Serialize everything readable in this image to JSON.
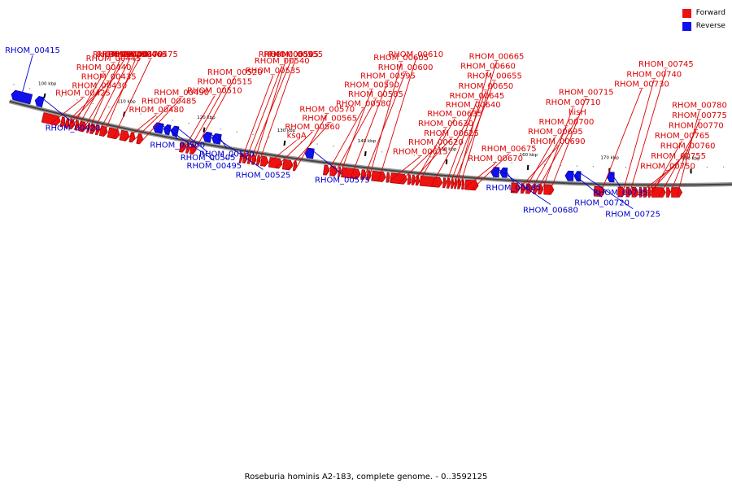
{
  "legend": {
    "forward": {
      "label": "Forward",
      "color": "#ee1111"
    },
    "reverse": {
      "label": "Reverse",
      "color": "#1111ee"
    }
  },
  "caption": "Roseburia hominis A2-183, complete genome. - 0..3592125",
  "chart_data": {
    "type": "genome-map",
    "title": "Roseburia hominis A2-183, complete genome. - 0..3592125",
    "axis_range_kbp": [
      96,
      186
    ],
    "ticks_kbp": [
      100,
      110,
      120,
      130,
      140,
      150,
      160,
      170,
      180
    ],
    "tick_labels": [
      "100 kbp",
      "110 kbp",
      "120 kbp",
      "130 kbp",
      "140 kbp",
      "150 kbp",
      "160 kbp",
      "170 kbp",
      "180 kbp"
    ],
    "forward_genes": [
      {
        "label": "RHOM_00425",
        "start": 100.4,
        "end": 102.6
      },
      {
        "label": "RHOM_00430",
        "start": 102.7,
        "end": 103.2
      },
      {
        "label": "RHOM_00435",
        "start": 103.3,
        "end": 103.7
      },
      {
        "label": "RHOM_00440",
        "start": 103.8,
        "end": 104.4
      },
      {
        "label": "RHOM_00445",
        "start": 104.5,
        "end": 104.9
      },
      {
        "label": "RHOM_00450",
        "start": 105.0,
        "end": 105.9
      },
      {
        "label": "RHOM_00455",
        "start": 106.0,
        "end": 106.3
      },
      {
        "label": "RHOM_00460",
        "start": 106.4,
        "end": 107.0
      },
      {
        "label": "RHOM_00465",
        "start": 107.1,
        "end": 107.5
      },
      {
        "label": "RHOM_00470",
        "start": 107.6,
        "end": 108.5
      },
      {
        "label": "RHOM_00475",
        "start": 108.6,
        "end": 110.0
      },
      {
        "label": "RHOM_00480",
        "start": 110.1,
        "end": 111.2
      },
      {
        "label": "RHOM_00485",
        "start": 111.3,
        "end": 111.9
      },
      {
        "label": "RHOM_00490",
        "start": 112.2,
        "end": 112.9
      },
      {
        "label": "RHOM_00510",
        "start": 117.5,
        "end": 118.2
      },
      {
        "label": "RHOM_00515",
        "start": 118.3,
        "end": 118.7
      },
      {
        "label": "RHOM_00520",
        "start": 118.8,
        "end": 119.5
      },
      {
        "label": "RHOM_00535",
        "start": 124.9,
        "end": 125.2
      },
      {
        "label": "RHOM_00540",
        "start": 125.3,
        "end": 125.8
      },
      {
        "label": "RHOM_00545",
        "start": 125.9,
        "end": 126.3
      },
      {
        "label": "RHOM_00550",
        "start": 126.4,
        "end": 126.9
      },
      {
        "label": "RHOM_00555",
        "start": 127.0,
        "end": 127.4
      },
      {
        "label": "ksgA",
        "start": 127.5,
        "end": 128.4
      },
      {
        "label": "RHOM_00560",
        "start": 128.5,
        "end": 130.1
      },
      {
        "label": "RHOM_00565",
        "start": 130.2,
        "end": 131.4
      },
      {
        "label": "RHOM_00570",
        "start": 131.5,
        "end": 131.9
      },
      {
        "label": "RHOM_00580",
        "start": 135.2,
        "end": 135.9
      },
      {
        "label": "RHOM_00585",
        "start": 136.0,
        "end": 136.9
      },
      {
        "label": "RHOM_00590",
        "start": 137.0,
        "end": 137.3
      },
      {
        "label": "RHOM_00595",
        "start": 137.4,
        "end": 139.7
      },
      {
        "label": "RHOM_00600",
        "start": 139.8,
        "end": 140.4
      },
      {
        "label": "RHOM_00605",
        "start": 140.5,
        "end": 141.0
      },
      {
        "label": "RHOM_00610",
        "start": 141.1,
        "end": 142.8
      },
      {
        "label": "RHOM_00615",
        "start": 142.9,
        "end": 143.3
      },
      {
        "label": "RHOM_00620",
        "start": 143.4,
        "end": 145.4
      },
      {
        "label": "RHOM_00625",
        "start": 145.5,
        "end": 145.9
      },
      {
        "label": "RHOM_00630",
        "start": 146.0,
        "end": 146.4
      },
      {
        "label": "RHOM_00635",
        "start": 146.5,
        "end": 146.9
      },
      {
        "label": "RHOM_00640",
        "start": 147.0,
        "end": 149.7
      },
      {
        "label": "RHOM_00645",
        "start": 149.8,
        "end": 150.2
      },
      {
        "label": "RHOM_00650",
        "start": 150.3,
        "end": 150.7
      },
      {
        "label": "RHOM_00655",
        "start": 150.8,
        "end": 151.1
      },
      {
        "label": "RHOM_00660",
        "start": 151.2,
        "end": 151.5
      },
      {
        "label": "RHOM_00665",
        "start": 151.6,
        "end": 152.0
      },
      {
        "label": "RHOM_00670",
        "start": 152.1,
        "end": 152.4
      },
      {
        "label": "RHOM_00675",
        "start": 152.5,
        "end": 154.1
      },
      {
        "label": "RHOM_00690",
        "start": 158.1,
        "end": 159.2
      },
      {
        "label": "RHOM_00695",
        "start": 159.3,
        "end": 159.8
      },
      {
        "label": "RHOM_00700",
        "start": 159.9,
        "end": 160.7
      },
      {
        "label": "hisH",
        "start": 160.8,
        "end": 161.3
      },
      {
        "label": "RHOM_00710",
        "start": 161.4,
        "end": 162.0
      },
      {
        "label": "RHOM_00715",
        "start": 162.1,
        "end": 163.3
      },
      {
        "label": "RHOM_00730",
        "start": 168.2,
        "end": 169.5
      },
      {
        "label": "RHOM_00740",
        "start": 171.1,
        "end": 172.0
      },
      {
        "label": "RHOM_00745",
        "start": 172.1,
        "end": 172.7
      },
      {
        "label": "RHOM_00750",
        "start": 172.8,
        "end": 173.6
      },
      {
        "label": "RHOM_00755",
        "start": 173.7,
        "end": 174.1
      },
      {
        "label": "RHOM_00760",
        "start": 174.2,
        "end": 174.7
      },
      {
        "label": "RHOM_00765",
        "start": 174.8,
        "end": 175.1
      },
      {
        "label": "RHOM_00770",
        "start": 175.2,
        "end": 176.9
      },
      {
        "label": "RHOM_00775",
        "start": 177.0,
        "end": 177.5
      },
      {
        "label": "RHOM_00780",
        "start": 177.6,
        "end": 178.9
      }
    ],
    "reverse_genes": [
      {
        "label": "RHOM_00415",
        "start": 96.0,
        "end": 98.5
      },
      {
        "label": "RHOM_00420",
        "start": 99.0,
        "end": 100.0
      },
      {
        "label": "RHOM_00495",
        "start": 113.8,
        "end": 115.0
      },
      {
        "label": "RHOM_00500",
        "start": 115.1,
        "end": 115.9
      },
      {
        "label": "RHOM_00505",
        "start": 116.0,
        "end": 116.9
      },
      {
        "label": "RHOM_00525",
        "start": 120.0,
        "end": 121.0
      },
      {
        "label": "RHOM_00530",
        "start": 121.1,
        "end": 122.2
      },
      {
        "label": "RHOM_00575",
        "start": 132.6,
        "end": 133.7
      },
      {
        "label": "RHOM_00680",
        "start": 155.5,
        "end": 156.5
      },
      {
        "label": "RHOM_00685",
        "start": 156.6,
        "end": 157.5
      },
      {
        "label": "RHOM_00720",
        "start": 164.6,
        "end": 165.6
      },
      {
        "label": "RHOM_00725",
        "start": 165.7,
        "end": 166.5
      },
      {
        "label": "RHOM_00735",
        "start": 169.7,
        "end": 170.6
      }
    ]
  }
}
